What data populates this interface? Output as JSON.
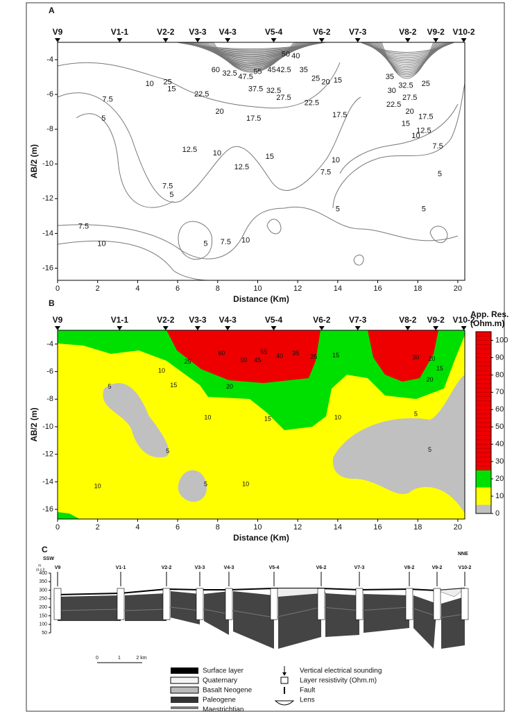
{
  "chart_data": [
    {
      "type": "contour",
      "panel": "A",
      "stations": [
        "V9",
        "V1-1",
        "V2-2",
        "V3-3",
        "V4-3",
        "V5-4",
        "V6-2",
        "V7-3",
        "V8-2",
        "V9-2",
        "V10-2"
      ],
      "station_x": [
        0,
        3.1,
        5.4,
        7.0,
        8.5,
        10.8,
        13.2,
        15.0,
        17.5,
        18.9,
        20.3
      ],
      "xlabel": "Distance (Km)",
      "ylabel": "AB/2 (m)",
      "xlim": [
        0,
        20.35
      ],
      "ylim": [
        -16.7,
        -3
      ],
      "xticks": [
        0,
        2,
        4,
        6,
        8,
        10,
        12,
        14,
        16,
        18,
        20
      ],
      "yticks": [
        -4,
        -6,
        -8,
        -10,
        -12,
        -14,
        -16
      ],
      "contour_labels": [
        {
          "x": 4.6,
          "y": -5.4,
          "value": 10
        },
        {
          "x": 2.5,
          "y": -6.3,
          "value": 7.5
        },
        {
          "x": 2.3,
          "y": -7.4,
          "value": 5
        },
        {
          "x": 5.5,
          "y": -5.3,
          "value": 25
        },
        {
          "x": 5.7,
          "y": -5.7,
          "value": 15
        },
        {
          "x": 7.2,
          "y": -6,
          "value": 22.5
        },
        {
          "x": 8.1,
          "y": -7,
          "value": 20
        },
        {
          "x": 9.8,
          "y": -7.4,
          "value": 17.5
        },
        {
          "x": 7.9,
          "y": -4.6,
          "value": 60
        },
        {
          "x": 8.6,
          "y": -4.8,
          "value": 32.5
        },
        {
          "x": 9.4,
          "y": -5,
          "value": 47.5
        },
        {
          "x": 10,
          "y": -4.7,
          "value": 55
        },
        {
          "x": 10.7,
          "y": -4.6,
          "value": 45
        },
        {
          "x": 11.3,
          "y": -4.6,
          "value": 42.5
        },
        {
          "x": 11.4,
          "y": -3.7,
          "value": 50
        },
        {
          "x": 11.9,
          "y": -3.8,
          "value": 40
        },
        {
          "x": 9.9,
          "y": -5.7,
          "value": 37.5
        },
        {
          "x": 10.8,
          "y": -5.8,
          "value": 32.5
        },
        {
          "x": 11.3,
          "y": -6.2,
          "value": 27.5
        },
        {
          "x": 12.3,
          "y": -4.6,
          "value": 35
        },
        {
          "x": 12.9,
          "y": -5.1,
          "value": 25
        },
        {
          "x": 12.7,
          "y": -6.5,
          "value": 22.5
        },
        {
          "x": 13.4,
          "y": -5.3,
          "value": 20
        },
        {
          "x": 14,
          "y": -5.2,
          "value": 15
        },
        {
          "x": 14.1,
          "y": -7.2,
          "value": 17.5
        },
        {
          "x": 6.6,
          "y": -9.2,
          "value": 12.5
        },
        {
          "x": 7.97,
          "y": -9.4,
          "value": 10
        },
        {
          "x": 9.2,
          "y": -10.2,
          "value": 12.5
        },
        {
          "x": 10.6,
          "y": -9.6,
          "value": 15
        },
        {
          "x": 13.9,
          "y": -9.8,
          "value": 10
        },
        {
          "x": 13.4,
          "y": -10.5,
          "value": 7.5
        },
        {
          "x": 14,
          "y": -12.6,
          "value": 5
        },
        {
          "x": 5.5,
          "y": -11.3,
          "value": 7.5
        },
        {
          "x": 5.7,
          "y": -11.8,
          "value": 5
        },
        {
          "x": 1.3,
          "y": -13.6,
          "value": 7.5
        },
        {
          "x": 2.2,
          "y": -14.6,
          "value": 10
        },
        {
          "x": 7.4,
          "y": -14.6,
          "value": 5
        },
        {
          "x": 8.4,
          "y": -14.5,
          "value": 7.5
        },
        {
          "x": 9.4,
          "y": -14.4,
          "value": 10
        },
        {
          "x": 16.6,
          "y": -5,
          "value": 35
        },
        {
          "x": 17.4,
          "y": -5.5,
          "value": 32.5
        },
        {
          "x": 16.7,
          "y": -5.8,
          "value": 30
        },
        {
          "x": 17.6,
          "y": -6.2,
          "value": 27.5
        },
        {
          "x": 18.4,
          "y": -5.4,
          "value": 25
        },
        {
          "x": 16.8,
          "y": -6.6,
          "value": 22.5
        },
        {
          "x": 17.6,
          "y": -7,
          "value": 20
        },
        {
          "x": 18.4,
          "y": -7.3,
          "value": 17.5
        },
        {
          "x": 17.4,
          "y": -7.7,
          "value": 15
        },
        {
          "x": 18.3,
          "y": -8.1,
          "value": 12.5
        },
        {
          "x": 17.9,
          "y": -8.4,
          "value": 10
        },
        {
          "x": 19,
          "y": -9,
          "value": 7.5
        },
        {
          "x": 19.1,
          "y": -10.6,
          "value": 5
        },
        {
          "x": 18.3,
          "y": -12.6,
          "value": 5
        }
      ]
    },
    {
      "type": "filled-contour",
      "panel": "B",
      "stations": [
        "V9",
        "V1-1",
        "V2-2",
        "V3-3",
        "V4-3",
        "V5-4",
        "V6-2",
        "V7-3",
        "V8-2",
        "V9-2",
        "V10-2"
      ],
      "station_x": [
        0,
        3.1,
        5.4,
        7.0,
        8.5,
        10.8,
        13.2,
        15.0,
        17.5,
        18.9,
        20.3
      ],
      "xlabel": "Distance (Km)",
      "ylabel": "AB/2 (m)",
      "xlim": [
        0,
        20.35
      ],
      "ylim": [
        -16.7,
        -3
      ],
      "xticks": [
        0,
        2,
        4,
        6,
        8,
        10,
        12,
        14,
        16,
        18,
        20
      ],
      "yticks": [
        -4,
        -6,
        -8,
        -10,
        -12,
        -14,
        -16
      ],
      "colorbar": {
        "title": [
          "App. Res.",
          "(Ohm.m)"
        ],
        "ylim": [
          0,
          105
        ],
        "ticks": [
          0,
          10,
          20,
          30,
          40,
          50,
          60,
          70,
          80,
          90,
          100
        ],
        "levels": [
          {
            "from": 0,
            "to": 5,
            "color": "#c0c0c0"
          },
          {
            "from": 5,
            "to": 15,
            "color": "#ffff00"
          },
          {
            "from": 15,
            "to": 25,
            "color": "#00e000"
          },
          {
            "from": 25,
            "to": 105,
            "color": "#ee0000"
          }
        ]
      },
      "contour_labels": [
        {
          "x": 2.6,
          "y": -7.1,
          "value": 5
        },
        {
          "x": 5.2,
          "y": -5.95,
          "value": 10
        },
        {
          "x": 5.8,
          "y": -7,
          "value": 15
        },
        {
          "x": 6.5,
          "y": -5.3,
          "value": 25
        },
        {
          "x": 8.6,
          "y": -7.1,
          "value": 20
        },
        {
          "x": 8.2,
          "y": -4.7,
          "value": 60
        },
        {
          "x": 9.3,
          "y": -5.2,
          "value": 50
        },
        {
          "x": 10.3,
          "y": -4.6,
          "value": 55
        },
        {
          "x": 10,
          "y": -5.2,
          "value": 45
        },
        {
          "x": 11.1,
          "y": -4.9,
          "value": 40
        },
        {
          "x": 11.9,
          "y": -4.7,
          "value": 35
        },
        {
          "x": 12.8,
          "y": -4.95,
          "value": 25
        },
        {
          "x": 13.9,
          "y": -4.85,
          "value": 15
        },
        {
          "x": 10.5,
          "y": -9.45,
          "value": 15
        },
        {
          "x": 7.5,
          "y": -9.35,
          "value": 10
        },
        {
          "x": 5.5,
          "y": -11.8,
          "value": 5
        },
        {
          "x": 7.4,
          "y": -14.2,
          "value": 5
        },
        {
          "x": 2,
          "y": -14.35,
          "value": 10
        },
        {
          "x": 9.4,
          "y": -14.2,
          "value": 10
        },
        {
          "x": 14,
          "y": -9.35,
          "value": 10
        },
        {
          "x": 17.9,
          "y": -9.1,
          "value": 5
        },
        {
          "x": 18.6,
          "y": -11.7,
          "value": 5
        },
        {
          "x": 17.9,
          "y": -5,
          "value": 30
        },
        {
          "x": 18.7,
          "y": -5.1,
          "value": 20
        },
        {
          "x": 18.6,
          "y": -6.6,
          "value": 20
        },
        {
          "x": 19.1,
          "y": -5.8,
          "value": 15
        }
      ]
    }
  ],
  "cross_section": {
    "panel": "C",
    "left": "SSW",
    "right": "NNE",
    "axis_label": [
      "m",
      "(a.s.l)"
    ],
    "elevation_ticks": [
      400,
      350,
      300,
      250,
      200,
      150,
      100,
      50
    ],
    "stations": [
      "V9",
      "V1-1",
      "V2-2",
      "V3-3",
      "V4-3",
      "V5-4",
      "V6-2",
      "V7-3",
      "V8-2",
      "V9-2",
      "V10-2"
    ],
    "scale": [
      "0",
      "1",
      "2 km"
    ],
    "legend_left": [
      "Surface layer",
      "Quaternary",
      "Basalt Neogene",
      "Paleogene",
      "Maestrichtian"
    ],
    "legend_right": [
      "Vertical electrical sounding",
      "Layer resistivity (Ohm.m)",
      "Fault",
      "Lens"
    ]
  }
}
